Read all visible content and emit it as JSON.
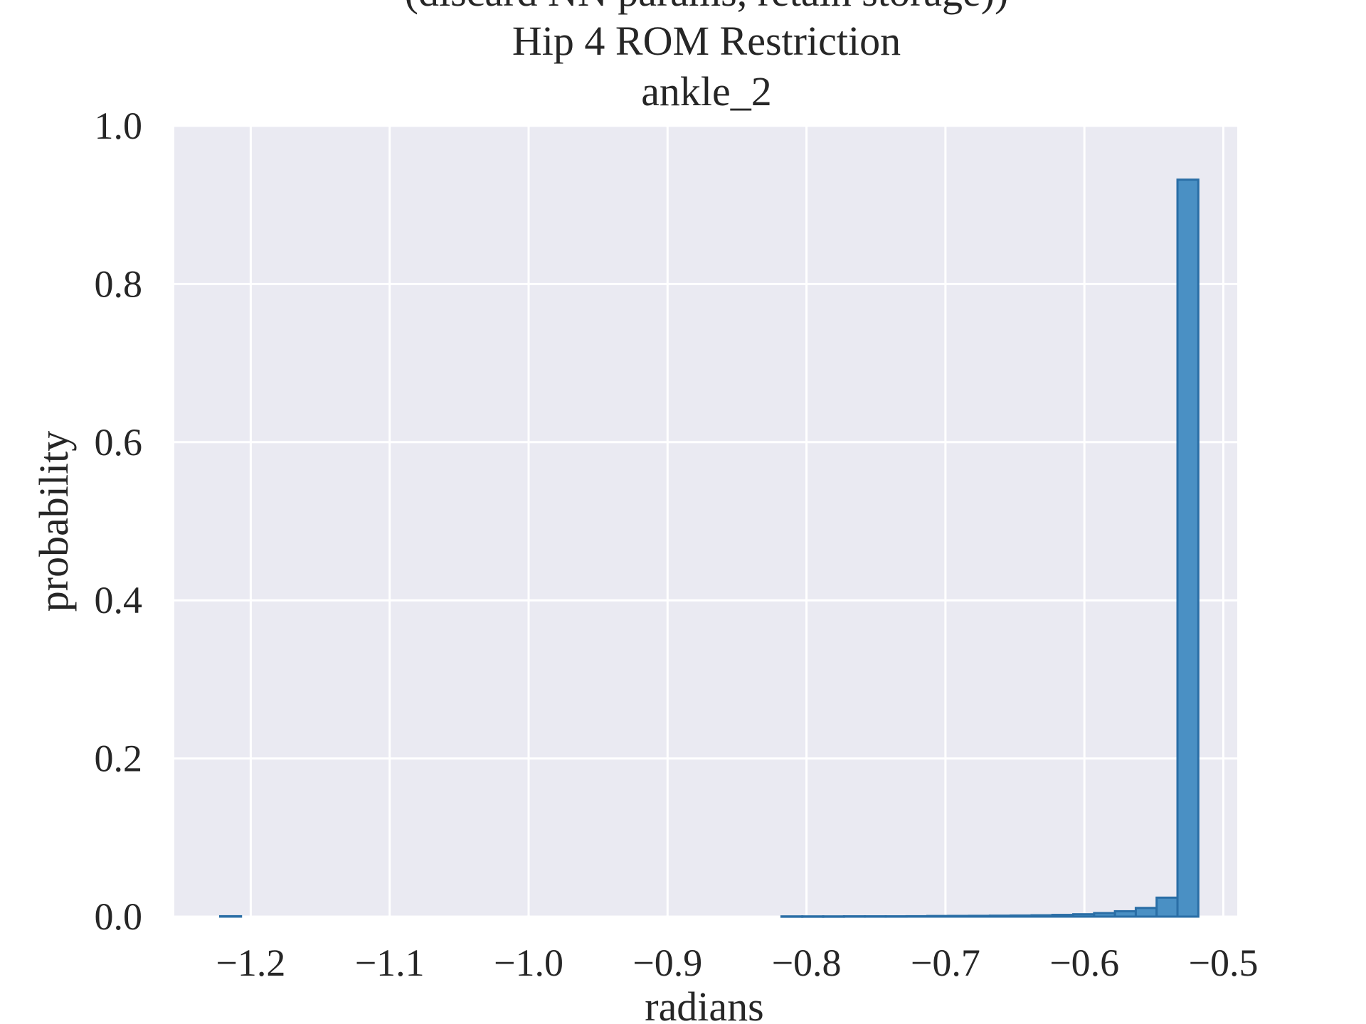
{
  "chart_data": {
    "type": "bar",
    "title_lines": [
      "(discard NN params, retain storage))",
      "Hip 4 ROM Restriction",
      "ankle_2"
    ],
    "xlabel": "radians",
    "ylabel": "probability",
    "xlim": [
      -1.255,
      -0.49
    ],
    "ylim": [
      0,
      1.0
    ],
    "xticks": [
      -1.2,
      -1.1,
      -1.0,
      -0.9,
      -0.8,
      -0.7,
      -0.6,
      -0.5
    ],
    "xtick_labels": [
      "−1.2",
      "−1.1",
      "−1.0",
      "−0.9",
      "−0.8",
      "−0.7",
      "−0.6",
      "−0.5"
    ],
    "yticks": [
      0.0,
      0.2,
      0.4,
      0.6,
      0.8,
      1.0
    ],
    "ytick_labels": [
      "0.0",
      "0.2",
      "0.4",
      "0.6",
      "0.8",
      "1.0"
    ],
    "grid": true,
    "colors": {
      "background": "#eaeaf2",
      "grid": "#ffffff",
      "bar_fill": "#4a90c4",
      "bar_edge": "#2a6ea6"
    },
    "series": [
      {
        "bins": [
          [
            -1.222,
            -1.207,
            0.0005
          ],
          [
            -0.818,
            -0.803,
            0.0003
          ],
          [
            -0.803,
            -0.788,
            0.0003
          ],
          [
            -0.788,
            -0.773,
            0.0003
          ],
          [
            -0.773,
            -0.758,
            0.0004
          ],
          [
            -0.758,
            -0.743,
            0.0004
          ],
          [
            -0.743,
            -0.728,
            0.0004
          ],
          [
            -0.728,
            -0.713,
            0.0005
          ],
          [
            -0.713,
            -0.698,
            0.0008
          ],
          [
            -0.698,
            -0.683,
            0.0009
          ],
          [
            -0.683,
            -0.668,
            0.001
          ],
          [
            -0.668,
            -0.653,
            0.0012
          ],
          [
            -0.653,
            -0.638,
            0.0014
          ],
          [
            -0.638,
            -0.623,
            0.0017
          ],
          [
            -0.623,
            -0.608,
            0.0022
          ],
          [
            -0.608,
            -0.593,
            0.003
          ],
          [
            -0.593,
            -0.578,
            0.0045
          ],
          [
            -0.578,
            -0.563,
            0.0068
          ],
          [
            -0.563,
            -0.548,
            0.011
          ],
          [
            -0.548,
            -0.533,
            0.024
          ],
          [
            -0.533,
            -0.518,
            0.932
          ]
        ]
      }
    ]
  }
}
